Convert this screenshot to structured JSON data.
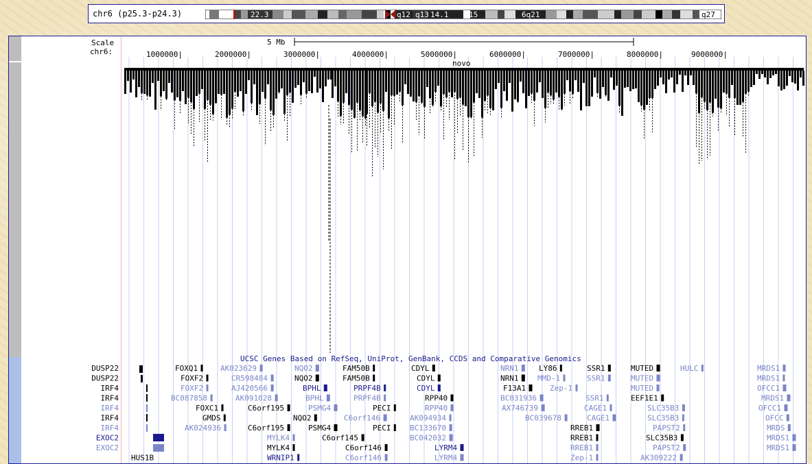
{
  "ideogram": {
    "label": "chr6 (p25.3-p24.3)",
    "bands": [
      "22.3",
      "q12",
      "q13",
      "14.1",
      "15",
      "6q21",
      "q27"
    ]
  },
  "ruler": {
    "scale_label": "Scale",
    "scale_value": "5 Mb",
    "chrom_label": "chr6:",
    "positions": [
      "1000000|",
      "2000000|",
      "3000000|",
      "4000000|",
      "5000000|",
      "6000000|",
      "7000000|",
      "8000000|",
      "9000000|"
    ]
  },
  "novo_track": {
    "label": "novo"
  },
  "genes_track": {
    "title": "UCSC Genes Based on RefSeq, UniProt, GenBank, CCDS and Comparative Genomics",
    "left_labels": [
      "DUSP22",
      "DUSP22",
      "IRF4",
      "IRF4",
      "IRF4",
      "IRF4",
      "IRF4",
      "EXOC2",
      "EXOC2",
      "HUS1B"
    ],
    "gene_rows": [
      [
        "FOXQ1",
        "AK023629",
        "NQO2",
        "FAM50B",
        "CDYL",
        "NRN1",
        "LY86",
        "SSR1",
        "MUTED",
        "HULC",
        "MRDS1"
      ],
      [
        "FOXF2",
        "CR598484",
        "NQO2",
        "FAM50B",
        "CDYL",
        "NRN1",
        "MMD-1",
        "SSR1",
        "MUTED",
        "MRDS1"
      ],
      [
        "FOXF2",
        "AJ420566",
        "BPHL",
        "PRPF4B",
        "CDYL",
        "F13A1",
        "Zep-1",
        "MUTED",
        "OFCC1"
      ],
      [
        "BC087858",
        "AK091028",
        "BPHL",
        "PRPF4B",
        "RPP40",
        "BC031936",
        "SSR1",
        "EEF1E1",
        "MRDS1"
      ],
      [
        "FOXC1",
        "C6orf195",
        "PSMG4",
        "PECI",
        "RPP40",
        "AX746739",
        "CAGE1",
        "SLC35B3",
        "OFCC1"
      ],
      [
        "GMDS",
        "NQO2",
        "C6orf146",
        "AK094934",
        "BC039678",
        "CAGE1",
        "SLC35B3",
        "OFCC"
      ],
      [
        "AK024936",
        "C6orf195",
        "PSMG4",
        "PECI",
        "BC133670",
        "RREB1",
        "PAPST2",
        "MRDS"
      ],
      [
        "MYLK4",
        "C6orf145",
        "BC042032",
        "RREB1",
        "SLC35B3",
        "MRDS1"
      ],
      [
        "MYLK4",
        "C6orf146",
        "LYRM4",
        "RREB1",
        "PAPST2",
        "MRDS1"
      ],
      [
        "WRNIP1",
        "C6orf146",
        "LYRM4",
        "Zep-1",
        "AK309222"
      ]
    ]
  },
  "colors": {
    "frame": "#1c1c9a",
    "dark_gene": "#000000",
    "light_gene": "#7b86c8",
    "navy_gene": "#1a1a8c",
    "grid": "#c9d1f2",
    "side_gray": "#bdbdbd",
    "side_blue": "#a9c1e8"
  }
}
